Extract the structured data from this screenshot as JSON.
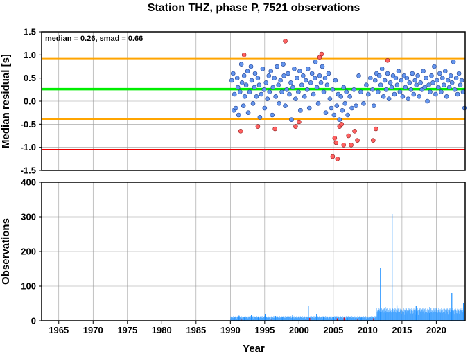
{
  "chart_data": [
    {
      "type": "scatter",
      "title": "Station THZ, phase P, 7521 observations",
      "ylabel": "Median residual [s]",
      "xlim": [
        1962.5,
        2024.2
      ],
      "ylim": [
        -1.5,
        1.5
      ],
      "x_ticks": [
        "1965",
        "1970",
        "1975",
        "1980",
        "1985",
        "1990",
        "1995",
        "2000",
        "2005",
        "2010",
        "2015",
        "2020"
      ],
      "y_ticks": [
        "1.5",
        "1.0",
        "0.5",
        "0.0",
        "-0.5",
        "-1.0",
        "-1.5"
      ],
      "annotation": "median = 0.26, smad = 0.66",
      "reference_lines": [
        {
          "y": 0.92,
          "color": "#ffa500"
        },
        {
          "y": 0.26,
          "color": "#00ee00"
        },
        {
          "y": -0.39,
          "color": "#ffa500"
        },
        {
          "y": -1.05,
          "color": "#ee0000"
        }
      ],
      "grid": true,
      "colors": {
        "inlier": "#6495ed",
        "outlier": "#ff6060"
      },
      "series": [
        {
          "points": [
            [
              1990.2,
              0.45
            ],
            [
              1990.4,
              0.6
            ],
            [
              1990.5,
              -0.2
            ],
            [
              1990.6,
              0.15
            ],
            [
              1990.8,
              -0.15
            ],
            [
              1991.0,
              0.5
            ],
            [
              1991.1,
              0.3
            ],
            [
              1991.2,
              -0.3
            ],
            [
              1991.4,
              0.2
            ],
            [
              1991.6,
              0.8
            ],
            [
              1991.7,
              0.4
            ],
            [
              1991.9,
              -0.1
            ],
            [
              1992.0,
              0.55
            ],
            [
              1992.1,
              0.1
            ],
            [
              1992.3,
              0.35
            ],
            [
              1992.5,
              0.65
            ],
            [
              1992.6,
              -0.25
            ],
            [
              1992.8,
              0.2
            ],
            [
              1993.0,
              0.75
            ],
            [
              1993.1,
              0.45
            ],
            [
              1993.3,
              -0.05
            ],
            [
              1993.5,
              0.3
            ],
            [
              1993.6,
              0.6
            ],
            [
              1993.8,
              0.1
            ],
            [
              1994.0,
              0.5
            ],
            [
              1994.2,
              0.35
            ],
            [
              1994.3,
              -0.35
            ],
            [
              1994.5,
              0.15
            ],
            [
              1994.7,
              0.7
            ],
            [
              1994.9,
              0.25
            ],
            [
              1995.0,
              -0.15
            ],
            [
              1995.2,
              0.4
            ],
            [
              1995.4,
              0.05
            ],
            [
              1995.6,
              0.55
            ],
            [
              1995.7,
              0.2
            ],
            [
              1995.9,
              0.65
            ],
            [
              1996.1,
              -0.3
            ],
            [
              1996.2,
              0.3
            ],
            [
              1996.4,
              0.5
            ],
            [
              1996.6,
              0.1
            ],
            [
              1996.8,
              0.75
            ],
            [
              1997.0,
              0.35
            ],
            [
              1997.1,
              -0.05
            ],
            [
              1997.3,
              0.45
            ],
            [
              1997.5,
              0.2
            ],
            [
              1997.7,
              0.8
            ],
            [
              1997.8,
              0.55
            ],
            [
              1998.0,
              -0.1
            ],
            [
              1998.2,
              0.25
            ],
            [
              1998.4,
              0.6
            ],
            [
              1998.6,
              0.15
            ],
            [
              1998.8,
              0.4
            ],
            [
              1998.9,
              -0.4
            ],
            [
              1999.1,
              0.3
            ],
            [
              1999.3,
              0.7
            ],
            [
              1999.5,
              0.05
            ],
            [
              1999.7,
              0.5
            ],
            [
              1999.9,
              0.2
            ],
            [
              2000.1,
              0.65
            ],
            [
              2000.2,
              -0.2
            ],
            [
              2000.4,
              0.35
            ],
            [
              2000.6,
              0.55
            ],
            [
              2000.8,
              0.1
            ],
            [
              2001.0,
              0.45
            ],
            [
              2001.2,
              0.25
            ],
            [
              2001.3,
              0.7
            ],
            [
              2001.5,
              -0.15
            ],
            [
              2001.7,
              0.4
            ],
            [
              2001.9,
              0.6
            ],
            [
              2002.1,
              0.15
            ],
            [
              2002.3,
              0.5
            ],
            [
              2002.4,
              0.85
            ],
            [
              2002.6,
              0.3
            ],
            [
              2002.8,
              -0.05
            ],
            [
              2003.0,
              0.55
            ],
            [
              2003.2,
              0.4
            ],
            [
              2003.4,
              0.75
            ],
            [
              2003.6,
              0.2
            ],
            [
              2003.8,
              0.5
            ],
            [
              2003.9,
              -0.25
            ],
            [
              2004.1,
              0.35
            ],
            [
              2004.3,
              0.6
            ],
            [
              2004.5,
              0.05
            ],
            [
              2004.7,
              -0.15
            ],
            [
              2004.9,
              0.25
            ],
            [
              2005.1,
              -0.3
            ],
            [
              2005.3,
              0.45
            ],
            [
              2005.5,
              -0.1
            ],
            [
              2005.7,
              0.15
            ],
            [
              2005.9,
              -0.4
            ],
            [
              2006.1,
              0.1
            ],
            [
              2006.3,
              -0.2
            ],
            [
              2006.5,
              0.3
            ],
            [
              2006.7,
              -0.05
            ],
            [
              2006.9,
              0.2
            ],
            [
              2007.1,
              -0.3
            ],
            [
              2007.4,
              0.1
            ],
            [
              2007.7,
              -0.15
            ],
            [
              2008.0,
              0.25
            ],
            [
              2008.3,
              -0.1
            ],
            [
              2008.7,
              0.55
            ],
            [
              2009.0,
              0.2
            ],
            [
              2009.4,
              -0.05
            ],
            [
              2009.8,
              0.35
            ],
            [
              2010.1,
              0.15
            ],
            [
              2010.4,
              0.5
            ],
            [
              2010.7,
              0.25
            ],
            [
              2010.9,
              -0.1
            ],
            [
              2011.1,
              0.45
            ],
            [
              2011.3,
              0.6
            ],
            [
              2011.5,
              0.2
            ],
            [
              2011.7,
              0.55
            ],
            [
              2011.9,
              0.35
            ],
            [
              2012.1,
              0.7
            ],
            [
              2012.3,
              0.1
            ],
            [
              2012.5,
              0.45
            ],
            [
              2012.7,
              0.25
            ],
            [
              2012.9,
              0.6
            ],
            [
              2013.1,
              0.05
            ],
            [
              2013.3,
              0.4
            ],
            [
              2013.5,
              0.3
            ],
            [
              2013.7,
              0.55
            ],
            [
              2013.9,
              0.15
            ],
            [
              2014.1,
              0.5
            ],
            [
              2014.3,
              0.35
            ],
            [
              2014.5,
              0.65
            ],
            [
              2014.7,
              0.2
            ],
            [
              2014.9,
              0.45
            ],
            [
              2015.1,
              0.1
            ],
            [
              2015.3,
              0.55
            ],
            [
              2015.5,
              0.3
            ],
            [
              2015.7,
              0.5
            ],
            [
              2015.9,
              0.05
            ],
            [
              2016.1,
              0.4
            ],
            [
              2016.3,
              0.25
            ],
            [
              2016.5,
              0.6
            ],
            [
              2016.7,
              0.15
            ],
            [
              2016.9,
              0.45
            ],
            [
              2017.1,
              0.35
            ],
            [
              2017.3,
              0.55
            ],
            [
              2017.5,
              0.1
            ],
            [
              2017.7,
              0.4
            ],
            [
              2017.9,
              0.25
            ],
            [
              2018.1,
              0.65
            ],
            [
              2018.3,
              0.3
            ],
            [
              2018.5,
              0.5
            ],
            [
              2018.7,
              0.0
            ],
            [
              2018.9,
              0.35
            ],
            [
              2019.1,
              0.2
            ],
            [
              2019.3,
              0.55
            ],
            [
              2019.5,
              0.4
            ],
            [
              2019.7,
              0.75
            ],
            [
              2019.9,
              0.15
            ],
            [
              2020.1,
              0.45
            ],
            [
              2020.3,
              0.3
            ],
            [
              2020.5,
              0.6
            ],
            [
              2020.7,
              0.2
            ],
            [
              2020.9,
              0.5
            ],
            [
              2021.1,
              0.35
            ],
            [
              2021.3,
              0.65
            ],
            [
              2021.5,
              0.1
            ],
            [
              2021.7,
              0.45
            ],
            [
              2021.9,
              0.3
            ],
            [
              2022.1,
              0.55
            ],
            [
              2022.3,
              0.4
            ],
            [
              2022.5,
              0.85
            ],
            [
              2022.7,
              0.25
            ],
            [
              2022.9,
              0.5
            ],
            [
              2023.1,
              0.15
            ],
            [
              2023.3,
              0.6
            ],
            [
              2023.5,
              0.35
            ],
            [
              2023.7,
              0.45
            ],
            [
              2023.9,
              0.2
            ],
            [
              2024.1,
              -0.15
            ]
          ]
        },
        {
          "points": [
            [
              1991.5,
              -0.65
            ],
            [
              1992.0,
              1.0
            ],
            [
              1994.0,
              -0.55
            ],
            [
              1996.5,
              -0.6
            ],
            [
              1998.0,
              1.3
            ],
            [
              1999.5,
              -0.55
            ],
            [
              2000.0,
              -0.45
            ],
            [
              2003.0,
              0.95
            ],
            [
              2003.3,
              1.02
            ],
            [
              2004.9,
              -1.2
            ],
            [
              2005.2,
              -0.8
            ],
            [
              2005.4,
              -0.9
            ],
            [
              2005.6,
              -1.25
            ],
            [
              2005.9,
              -0.55
            ],
            [
              2006.2,
              -0.5
            ],
            [
              2006.5,
              -0.95
            ],
            [
              2007.2,
              -0.75
            ],
            [
              2007.6,
              -0.95
            ],
            [
              2008.1,
              -0.65
            ],
            [
              2008.5,
              -0.85
            ],
            [
              2010.8,
              -0.85
            ],
            [
              2011.2,
              -0.6
            ],
            [
              2012.9,
              0.88
            ]
          ]
        }
      ]
    },
    {
      "type": "bar",
      "ylabel": "Observations",
      "xlabel": "Year",
      "xlim": [
        1962.5,
        2024.2
      ],
      "ylim": [
        0,
        400
      ],
      "x_ticks": [
        "1965",
        "1970",
        "1975",
        "1980",
        "1985",
        "1990",
        "1995",
        "2000",
        "2005",
        "2010",
        "2015",
        "2020"
      ],
      "y_ticks": [
        "400",
        "300",
        "200",
        "100",
        "0"
      ],
      "grid": true,
      "colors": {
        "bars": "#1e90ff",
        "outlier_bars": "#ee0000"
      },
      "spikes": [
        {
          "x": 1990.5,
          "y": 12
        },
        {
          "x": 1991.2,
          "y": 15
        },
        {
          "x": 1992.0,
          "y": 10
        },
        {
          "x": 1993.0,
          "y": 18
        },
        {
          "x": 1994.0,
          "y": 12
        },
        {
          "x": 1995.0,
          "y": 20
        },
        {
          "x": 1996.5,
          "y": 14
        },
        {
          "x": 1997.5,
          "y": 11
        },
        {
          "x": 1999.0,
          "y": 16
        },
        {
          "x": 2001.3,
          "y": 42
        },
        {
          "x": 2002.5,
          "y": 20
        },
        {
          "x": 2003.5,
          "y": 12
        },
        {
          "x": 2005.0,
          "y": 10
        },
        {
          "x": 2007.0,
          "y": 8
        },
        {
          "x": 2009.0,
          "y": 9
        },
        {
          "x": 2011.5,
          "y": 30
        },
        {
          "x": 2011.8,
          "y": 152
        },
        {
          "x": 2012.5,
          "y": 40
        },
        {
          "x": 2013.5,
          "y": 308
        },
        {
          "x": 2014.2,
          "y": 45
        },
        {
          "x": 2015.5,
          "y": 38
        },
        {
          "x": 2017.0,
          "y": 42
        },
        {
          "x": 2019.0,
          "y": 40
        },
        {
          "x": 2022.2,
          "y": 80
        },
        {
          "x": 2023.9,
          "y": 52
        }
      ],
      "outlier_spikes": [
        {
          "x": 1991.5,
          "y": 6
        },
        {
          "x": 1996.0,
          "y": 5
        },
        {
          "x": 2001.5,
          "y": 8
        },
        {
          "x": 2005.5,
          "y": 7
        },
        {
          "x": 2006.5,
          "y": 9
        },
        {
          "x": 2008.5,
          "y": 6
        },
        {
          "x": 2010.8,
          "y": 7
        }
      ]
    }
  ]
}
